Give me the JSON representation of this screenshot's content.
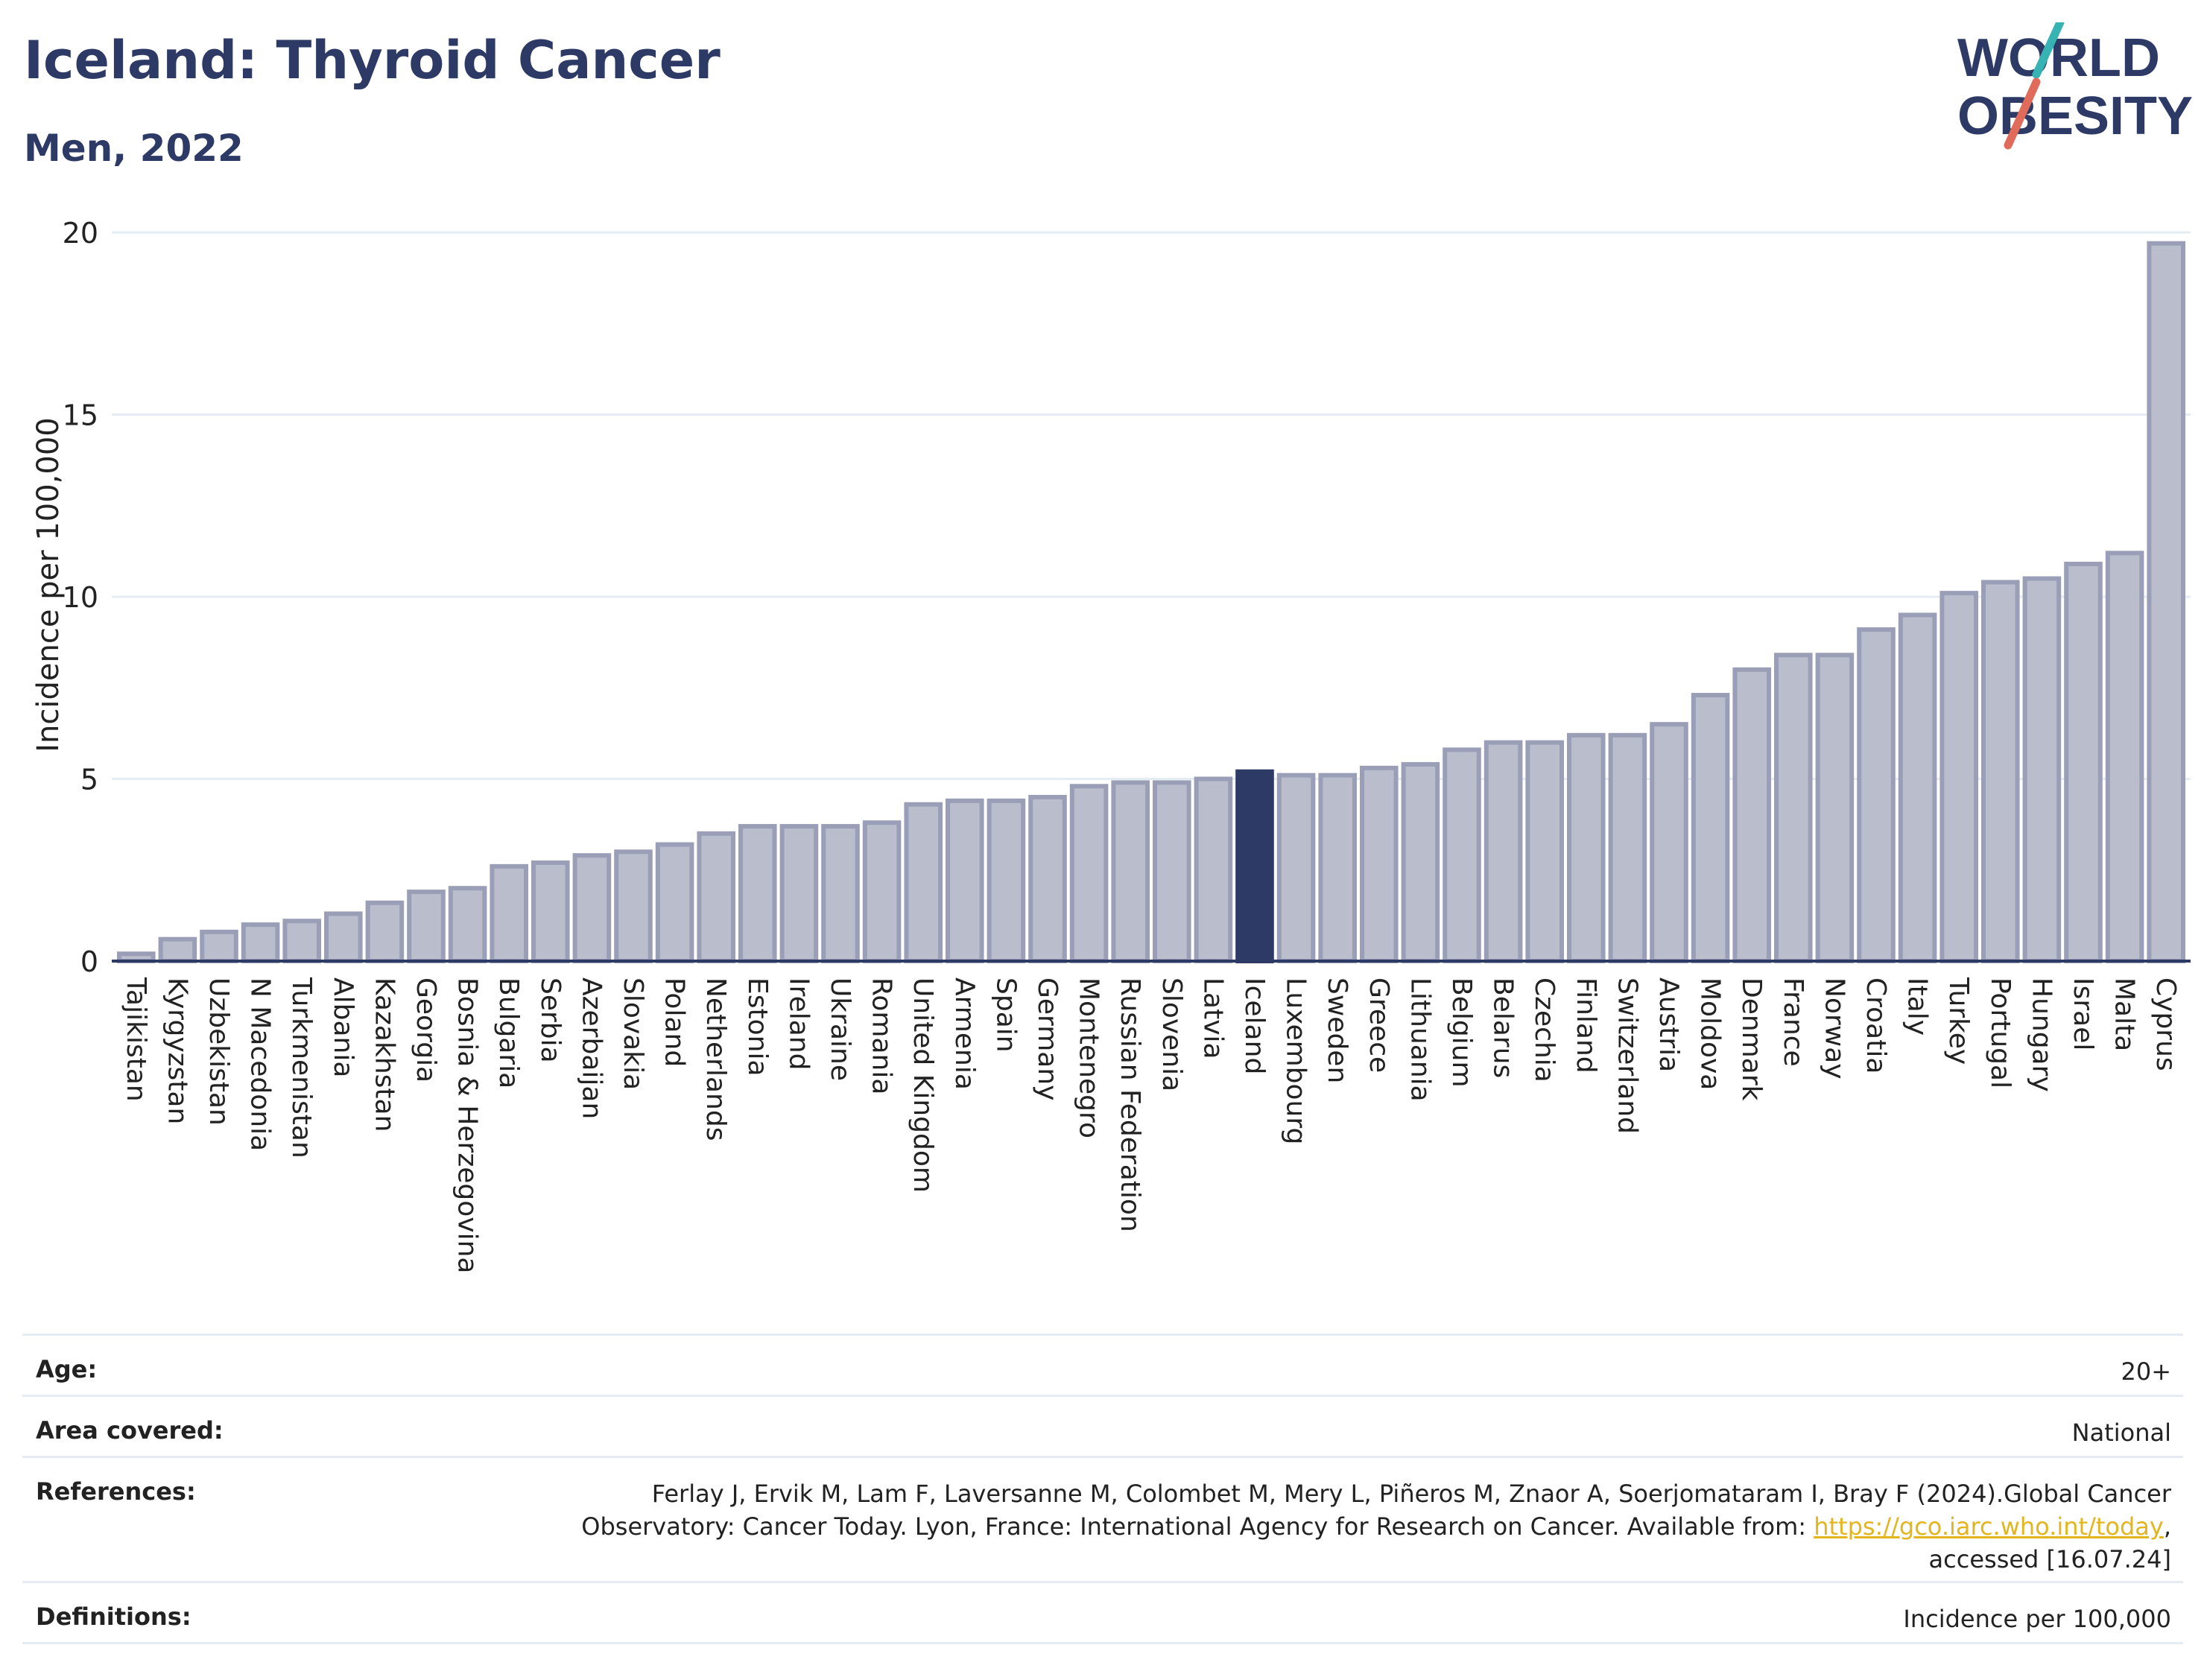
{
  "header": {
    "title": "Iceland: Thyroid Cancer",
    "subtitle": "Men, 2022"
  },
  "logo": {
    "line1": "WORLD",
    "line2": "OBESITY",
    "slash_colors": [
      "#37b3b3",
      "#e16b5a"
    ],
    "text_color": "#2d3a66"
  },
  "colors": {
    "bar": "#b9bdcc",
    "bar_border": "#9a9fb7",
    "highlight": "#2d3a66",
    "axis_text": "#222222",
    "gridline": "#e6ecf3"
  },
  "chart_data": {
    "type": "bar",
    "ylabel": "Incidence per 100,000",
    "ylim": [
      0,
      20
    ],
    "yticks": [
      0,
      5,
      10,
      15,
      20
    ],
    "highlight": "Iceland",
    "grid": true,
    "categories": [
      "Tajikistan",
      "Kyrgyzstan",
      "Uzbekistan",
      "N Macedonia",
      "Turkmenistan",
      "Albania",
      "Kazakhstan",
      "Georgia",
      "Bosnia & Herzegovina",
      "Bulgaria",
      "Serbia",
      "Azerbaijan",
      "Slovakia",
      "Poland",
      "Netherlands",
      "Estonia",
      "Ireland",
      "Ukraine",
      "Romania",
      "United Kingdom",
      "Armenia",
      "Spain",
      "Germany",
      "Montenegro",
      "Russian Federation",
      "Slovenia",
      "Latvia",
      "Iceland",
      "Luxembourg",
      "Sweden",
      "Greece",
      "Lithuania",
      "Belgium",
      "Belarus",
      "Czechia",
      "Finland",
      "Switzerland",
      "Austria",
      "Moldova",
      "Denmark",
      "France",
      "Norway",
      "Croatia",
      "Italy",
      "Turkey",
      "Portugal",
      "Hungary",
      "Israel",
      "Malta",
      "Cyprus"
    ],
    "values": [
      0.2,
      0.6,
      0.8,
      1.0,
      1.1,
      1.3,
      1.6,
      1.9,
      2.0,
      2.6,
      2.7,
      2.9,
      3.0,
      3.2,
      3.5,
      3.7,
      3.7,
      3.7,
      3.8,
      4.3,
      4.4,
      4.4,
      4.5,
      4.8,
      4.9,
      4.9,
      5.0,
      5.2,
      5.1,
      5.1,
      5.3,
      5.4,
      5.8,
      6.0,
      6.0,
      6.2,
      6.2,
      6.5,
      7.3,
      8.0,
      8.4,
      8.4,
      9.1,
      9.5,
      10.1,
      10.4,
      10.5,
      10.9,
      11.2,
      19.7
    ]
  },
  "info": {
    "age_label": "Age:",
    "age_value": "20+",
    "area_label": "Area covered:",
    "area_value": "National",
    "references_label": "References:",
    "references_line1": "Ferlay J, Ervik M, Lam F, Laversanne M, Colombet M, Mery L, Piñeros M, Znaor A, Soerjomataram I, Bray F (2024).Global Cancer",
    "references_line2": "Observatory: Cancer Today. Lyon, France: International Agency for Research on Cancer. Available from:",
    "references_link": "https://gco.iarc.who.int/today",
    "references_line2_end": ",",
    "references_line3": "accessed [16.07.24]",
    "definitions_label": "Definitions:",
    "definitions_value": "Incidence per 100,000"
  }
}
